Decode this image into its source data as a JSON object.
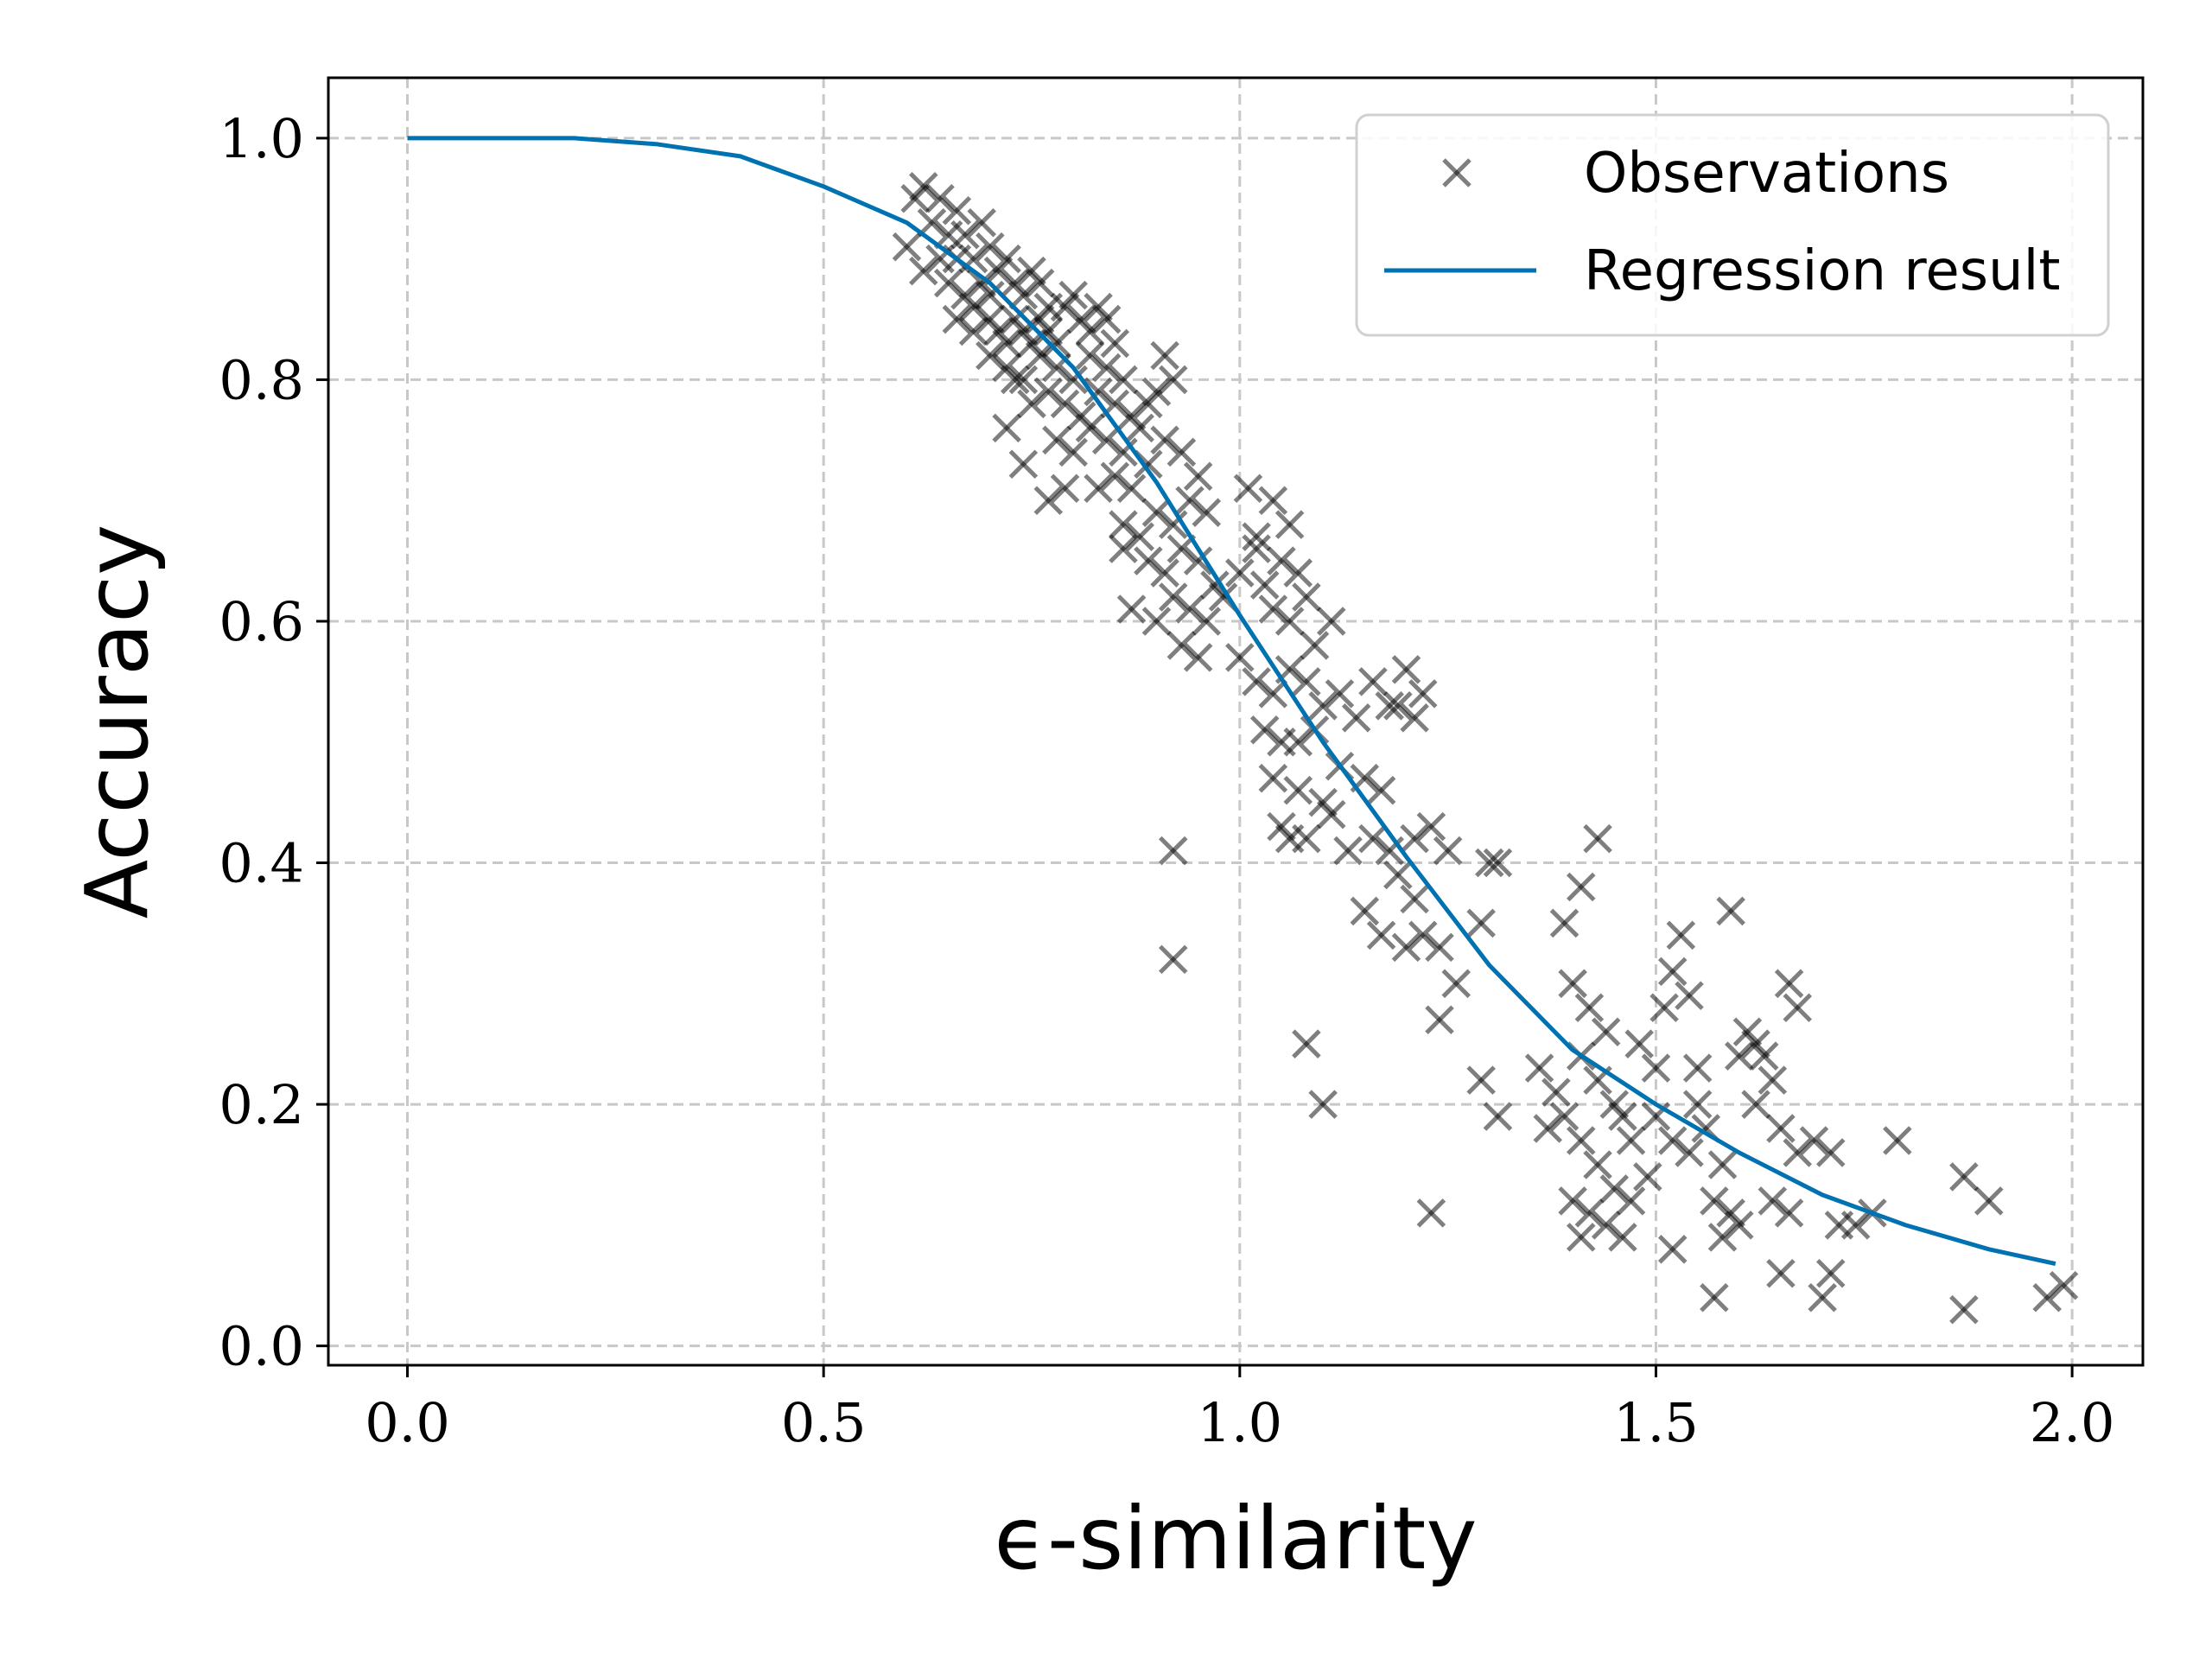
{
  "chart_data": {
    "type": "scatter",
    "xlabel": "ϵ-similarity",
    "ylabel": "Accuracy",
    "xlim": [
      -0.095,
      2.085
    ],
    "ylim": [
      -0.016,
      1.05
    ],
    "xticks": [
      0.0,
      0.5,
      1.0,
      1.5,
      2.0
    ],
    "xtick_labels": [
      "0.0",
      "0.5",
      "1.0",
      "1.5",
      "2.0"
    ],
    "yticks": [
      0.0,
      0.2,
      0.4,
      0.6,
      0.8,
      1.0
    ],
    "ytick_labels": [
      "0.0",
      "0.2",
      "0.4",
      "0.6",
      "0.8",
      "1.0"
    ],
    "grid": true,
    "legend": {
      "position": "top-right",
      "entries": [
        "Observations",
        "Regression result"
      ]
    },
    "colors": {
      "observations": "#000000",
      "regression": "#0072b2",
      "grid": "#c8c8c8"
    },
    "series": [
      {
        "name": "Observations",
        "marker": "x",
        "points": [
          [
            0.61,
            0.95
          ],
          [
            0.62,
            0.96
          ],
          [
            0.63,
            0.93
          ],
          [
            0.64,
            0.95
          ],
          [
            0.65,
            0.92
          ],
          [
            0.66,
            0.94
          ],
          [
            0.6,
            0.91
          ],
          [
            0.62,
            0.89
          ],
          [
            0.64,
            0.9
          ],
          [
            0.66,
            0.9
          ],
          [
            0.67,
            0.92
          ],
          [
            0.68,
            0.9
          ],
          [
            0.69,
            0.93
          ],
          [
            0.7,
            0.91
          ],
          [
            0.65,
            0.88
          ],
          [
            0.67,
            0.87
          ],
          [
            0.68,
            0.86
          ],
          [
            0.69,
            0.88
          ],
          [
            0.7,
            0.87
          ],
          [
            0.71,
            0.89
          ],
          [
            0.72,
            0.9
          ],
          [
            0.73,
            0.88
          ],
          [
            0.74,
            0.87
          ],
          [
            0.75,
            0.89
          ],
          [
            0.76,
            0.88
          ],
          [
            0.77,
            0.86
          ],
          [
            0.7,
            0.85
          ],
          [
            0.71,
            0.84
          ],
          [
            0.72,
            0.83
          ],
          [
            0.73,
            0.85
          ],
          [
            0.74,
            0.84
          ],
          [
            0.75,
            0.83
          ],
          [
            0.76,
            0.85
          ],
          [
            0.77,
            0.84
          ],
          [
            0.78,
            0.83
          ],
          [
            0.79,
            0.86
          ],
          [
            0.8,
            0.87
          ],
          [
            0.81,
            0.85
          ],
          [
            0.82,
            0.84
          ],
          [
            0.83,
            0.86
          ],
          [
            0.84,
            0.85
          ],
          [
            0.85,
            0.83
          ],
          [
            0.66,
            0.85
          ],
          [
            0.68,
            0.84
          ],
          [
            0.7,
            0.82
          ],
          [
            0.72,
            0.81
          ],
          [
            0.74,
            0.8
          ],
          [
            0.76,
            0.82
          ],
          [
            0.78,
            0.81
          ],
          [
            0.8,
            0.8
          ],
          [
            0.82,
            0.82
          ],
          [
            0.84,
            0.81
          ],
          [
            0.86,
            0.8
          ],
          [
            0.77,
            0.79
          ],
          [
            0.79,
            0.78
          ],
          [
            0.81,
            0.77
          ],
          [
            0.83,
            0.79
          ],
          [
            0.85,
            0.78
          ],
          [
            0.87,
            0.77
          ],
          [
            0.73,
            0.8
          ],
          [
            0.75,
            0.78
          ],
          [
            0.72,
            0.76
          ],
          [
            0.74,
            0.73
          ],
          [
            0.78,
            0.75
          ],
          [
            0.8,
            0.74
          ],
          [
            0.82,
            0.76
          ],
          [
            0.84,
            0.75
          ],
          [
            0.86,
            0.74
          ],
          [
            0.88,
            0.76
          ],
          [
            0.89,
            0.78
          ],
          [
            0.9,
            0.79
          ],
          [
            0.91,
            0.82
          ],
          [
            0.92,
            0.8
          ],
          [
            0.85,
            0.72
          ],
          [
            0.87,
            0.71
          ],
          [
            0.89,
            0.73
          ],
          [
            0.91,
            0.75
          ],
          [
            0.93,
            0.74
          ],
          [
            0.95,
            0.72
          ],
          [
            0.86,
            0.68
          ],
          [
            0.88,
            0.67
          ],
          [
            0.9,
            0.69
          ],
          [
            0.92,
            0.68
          ],
          [
            0.94,
            0.7
          ],
          [
            0.96,
            0.69
          ],
          [
            0.83,
            0.71
          ],
          [
            0.79,
            0.71
          ],
          [
            0.77,
            0.7
          ],
          [
            0.86,
            0.66
          ],
          [
            0.89,
            0.65
          ],
          [
            0.91,
            0.64
          ],
          [
            0.93,
            0.66
          ],
          [
            0.95,
            0.65
          ],
          [
            0.97,
            0.63
          ],
          [
            0.92,
            0.62
          ],
          [
            0.94,
            0.61
          ],
          [
            0.96,
            0.6
          ],
          [
            0.98,
            0.62
          ],
          [
            1.0,
            0.64
          ],
          [
            1.02,
            0.66
          ],
          [
            0.87,
            0.61
          ],
          [
            0.9,
            0.6
          ],
          [
            0.93,
            0.58
          ],
          [
            0.95,
            0.57
          ],
          [
            1.01,
            0.71
          ],
          [
            1.04,
            0.7
          ],
          [
            1.06,
            0.68
          ],
          [
            1.02,
            0.67
          ],
          [
            1.05,
            0.65
          ],
          [
            1.07,
            0.64
          ],
          [
            1.03,
            0.63
          ],
          [
            1.08,
            0.62
          ],
          [
            1.04,
            0.61
          ],
          [
            1.06,
            0.6
          ],
          [
            1.09,
            0.58
          ],
          [
            1.11,
            0.6
          ],
          [
            1.0,
            0.57
          ],
          [
            1.02,
            0.55
          ],
          [
            1.04,
            0.54
          ],
          [
            1.06,
            0.56
          ],
          [
            1.08,
            0.55
          ],
          [
            1.1,
            0.53
          ],
          [
            1.12,
            0.54
          ],
          [
            1.14,
            0.52
          ],
          [
            1.03,
            0.51
          ],
          [
            1.05,
            0.5
          ],
          [
            1.07,
            0.5
          ],
          [
            1.09,
            0.51
          ],
          [
            1.16,
            0.55
          ],
          [
            1.18,
            0.53
          ],
          [
            1.2,
            0.56
          ],
          [
            1.22,
            0.54
          ],
          [
            1.19,
            0.53
          ],
          [
            1.21,
            0.52
          ],
          [
            1.04,
            0.47
          ],
          [
            1.07,
            0.46
          ],
          [
            1.1,
            0.45
          ],
          [
            1.12,
            0.48
          ],
          [
            1.15,
            0.47
          ],
          [
            1.17,
            0.46
          ],
          [
            1.05,
            0.43
          ],
          [
            1.08,
            0.42
          ],
          [
            1.11,
            0.44
          ],
          [
            1.13,
            0.41
          ],
          [
            1.16,
            0.42
          ],
          [
            1.18,
            0.41
          ],
          [
            1.06,
            0.42
          ],
          [
            1.19,
            0.39
          ],
          [
            1.21,
            0.42
          ],
          [
            1.23,
            0.43
          ],
          [
            1.25,
            0.41
          ],
          [
            1.21,
            0.37
          ],
          [
            1.15,
            0.36
          ],
          [
            1.17,
            0.34
          ],
          [
            1.2,
            0.33
          ],
          [
            1.22,
            0.34
          ],
          [
            1.24,
            0.33
          ],
          [
            1.26,
            0.3
          ],
          [
            1.24,
            0.27
          ],
          [
            0.92,
            0.41
          ],
          [
            0.92,
            0.32
          ],
          [
            1.08,
            0.25
          ],
          [
            1.1,
            0.2
          ],
          [
            1.29,
            0.22
          ],
          [
            1.31,
            0.19
          ],
          [
            1.3,
            0.4
          ],
          [
            1.31,
            0.4
          ],
          [
            1.23,
            0.11
          ],
          [
            1.29,
            0.35
          ],
          [
            1.36,
            0.23
          ],
          [
            1.39,
            0.35
          ],
          [
            1.41,
            0.38
          ],
          [
            1.43,
            0.42
          ],
          [
            1.4,
            0.3
          ],
          [
            1.42,
            0.28
          ],
          [
            1.44,
            0.26
          ],
          [
            1.41,
            0.24
          ],
          [
            1.43,
            0.22
          ],
          [
            1.45,
            0.2
          ],
          [
            1.39,
            0.19
          ],
          [
            1.41,
            0.17
          ],
          [
            1.43,
            0.15
          ],
          [
            1.45,
            0.13
          ],
          [
            1.47,
            0.12
          ],
          [
            1.49,
            0.14
          ],
          [
            1.4,
            0.12
          ],
          [
            1.42,
            0.11
          ],
          [
            1.44,
            0.1
          ],
          [
            1.46,
            0.09
          ],
          [
            1.41,
            0.09
          ],
          [
            1.48,
            0.25
          ],
          [
            1.5,
            0.23
          ],
          [
            1.52,
            0.31
          ],
          [
            1.51,
            0.28
          ],
          [
            1.53,
            0.34
          ],
          [
            1.54,
            0.29
          ],
          [
            1.5,
            0.19
          ],
          [
            1.52,
            0.17
          ],
          [
            1.54,
            0.16
          ],
          [
            1.56,
            0.18
          ],
          [
            1.58,
            0.15
          ],
          [
            1.55,
            0.23
          ],
          [
            1.57,
            0.12
          ],
          [
            1.59,
            0.11
          ],
          [
            1.58,
            0.09
          ],
          [
            1.6,
            0.1
          ],
          [
            1.52,
            0.08
          ],
          [
            1.57,
            0.04
          ],
          [
            1.59,
            0.36
          ],
          [
            1.6,
            0.24
          ],
          [
            1.61,
            0.26
          ],
          [
            1.62,
            0.25
          ],
          [
            1.63,
            0.24
          ],
          [
            1.64,
            0.22
          ],
          [
            1.62,
            0.2
          ],
          [
            1.65,
            0.18
          ],
          [
            1.67,
            0.16
          ],
          [
            1.69,
            0.17
          ],
          [
            1.71,
            0.16
          ],
          [
            1.66,
            0.3
          ],
          [
            1.67,
            0.28
          ],
          [
            1.64,
            0.12
          ],
          [
            1.66,
            0.11
          ],
          [
            1.72,
            0.1
          ],
          [
            1.74,
            0.1
          ],
          [
            1.76,
            0.11
          ],
          [
            1.65,
            0.06
          ],
          [
            1.71,
            0.06
          ],
          [
            1.7,
            0.04
          ],
          [
            1.79,
            0.17
          ],
          [
            1.87,
            0.14
          ],
          [
            1.9,
            0.12
          ],
          [
            1.87,
            0.03
          ],
          [
            1.97,
            0.04
          ],
          [
            1.99,
            0.05
          ],
          [
            1.38,
            0.21
          ],
          [
            1.37,
            0.18
          ],
          [
            1.46,
            0.19
          ],
          [
            1.47,
            0.17
          ],
          [
            1.55,
            0.2
          ]
        ]
      },
      {
        "name": "Regression result",
        "marker": "line",
        "x": [
          0.0,
          0.1,
          0.2,
          0.3,
          0.4,
          0.5,
          0.6,
          0.7,
          0.8,
          0.9,
          1.0,
          1.1,
          1.2,
          1.3,
          1.4,
          1.5,
          1.6,
          1.7,
          1.8,
          1.9,
          1.98
        ],
        "y": [
          1.0,
          1.0,
          1.0,
          0.995,
          0.985,
          0.96,
          0.93,
          0.88,
          0.81,
          0.715,
          0.605,
          0.5,
          0.405,
          0.315,
          0.245,
          0.2,
          0.16,
          0.125,
          0.1,
          0.08,
          0.068
        ]
      }
    ]
  }
}
